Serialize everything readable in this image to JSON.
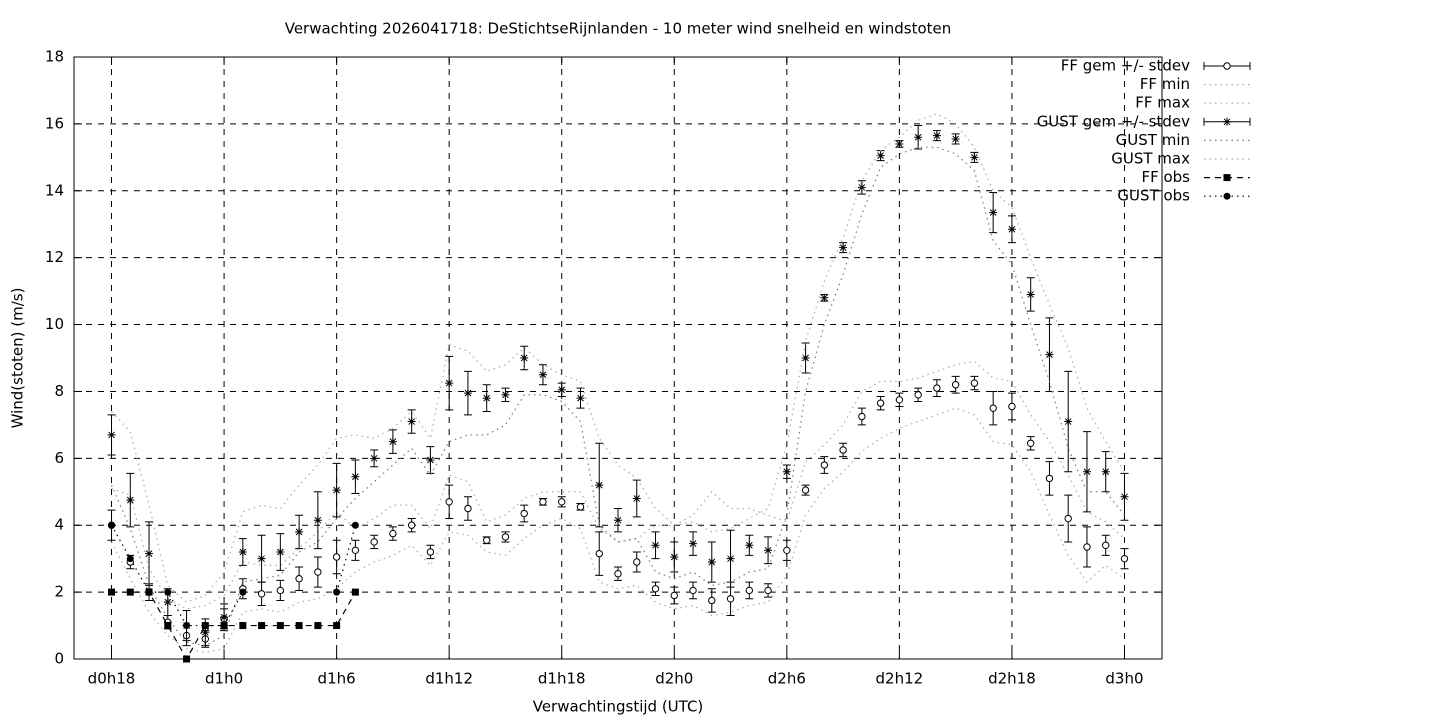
{
  "chart_data": {
    "type": "line",
    "title": "Verwachting 2026041718: DeStichtseRijnlanden - 10 meter wind snelheid en windstoten",
    "xlabel": "Verwachtingstijd (UTC)",
    "ylabel": "Wind(stoten) (m/s)",
    "xlim": [
      16,
      74
    ],
    "ylim": [
      0,
      18
    ],
    "xticks": [
      {
        "value": 18,
        "label": "d0h18"
      },
      {
        "value": 24,
        "label": "d1h0"
      },
      {
        "value": 30,
        "label": "d1h6"
      },
      {
        "value": 36,
        "label": "d1h12"
      },
      {
        "value": 42,
        "label": "d1h18"
      },
      {
        "value": 48,
        "label": "d2h0"
      },
      {
        "value": 54,
        "label": "d2h6"
      },
      {
        "value": 60,
        "label": "d2h12"
      },
      {
        "value": 66,
        "label": "d2h18"
      },
      {
        "value": 72,
        "label": "d3h0"
      }
    ],
    "yticks": [
      0,
      2,
      4,
      6,
      8,
      10,
      12,
      14,
      16,
      18
    ],
    "grid": true,
    "legend": "right",
    "x": [
      18,
      19,
      20,
      21,
      22,
      23,
      24,
      25,
      26,
      27,
      28,
      29,
      30,
      31,
      32,
      33,
      34,
      35,
      36,
      37,
      38,
      39,
      40,
      41,
      42,
      43,
      44,
      45,
      46,
      47,
      48,
      49,
      50,
      51,
      52,
      53,
      54,
      55,
      56,
      57,
      58,
      59,
      60,
      61,
      62,
      63,
      64,
      65,
      66,
      67,
      68,
      69,
      70,
      71,
      72
    ],
    "series": [
      {
        "name": "FF gem +/- stdev",
        "color": "#000000",
        "style": "errorbar",
        "marker": "circle",
        "values": [
          4.0,
          2.9,
          2.0,
          1.1,
          0.7,
          0.6,
          1.2,
          2.1,
          1.95,
          2.05,
          2.4,
          2.6,
          3.05,
          3.25,
          3.5,
          3.75,
          4.0,
          3.2,
          4.7,
          4.5,
          3.55,
          3.65,
          4.35,
          4.7,
          4.7,
          4.55,
          3.15,
          2.55,
          2.9,
          2.1,
          1.9,
          2.05,
          1.75,
          1.8,
          2.05,
          2.05,
          3.25,
          5.05,
          5.8,
          6.25,
          7.25,
          7.65,
          7.75,
          7.9,
          8.1,
          8.2,
          8.25,
          7.5,
          7.55,
          6.45,
          5.4,
          4.2,
          3.35,
          3.4,
          3.0
        ],
        "errors": [
          0.45,
          0.2,
          0.25,
          0.2,
          0.3,
          0.25,
          0.3,
          0.3,
          0.35,
          0.3,
          0.35,
          0.45,
          0.5,
          0.3,
          0.2,
          0.2,
          0.2,
          0.2,
          0.5,
          0.35,
          0.1,
          0.15,
          0.25,
          0.1,
          0.15,
          0.1,
          0.65,
          0.2,
          0.3,
          0.2,
          0.25,
          0.25,
          0.35,
          0.5,
          0.25,
          0.2,
          0.3,
          0.15,
          0.25,
          0.2,
          0.25,
          0.2,
          0.2,
          0.2,
          0.25,
          0.25,
          0.2,
          0.5,
          0.4,
          0.2,
          0.5,
          0.7,
          0.6,
          0.3,
          0.3
        ]
      },
      {
        "name": "FF min",
        "color": "#aaaaaa",
        "style": "dotted",
        "values": [
          3.5,
          2.4,
          1.4,
          0.7,
          0.3,
          0.2,
          0.3,
          1.4,
          1.5,
          1.4,
          1.7,
          1.8,
          2.1,
          2.6,
          2.9,
          3.1,
          3.4,
          2.8,
          3.8,
          3.7,
          3.2,
          3.1,
          3.6,
          4.0,
          4.2,
          3.9,
          2.3,
          2.1,
          2.2,
          1.7,
          1.5,
          1.6,
          1.3,
          1.4,
          1.6,
          1.7,
          2.5,
          4.3,
          5.1,
          5.6,
          6.2,
          6.6,
          6.9,
          7.1,
          7.3,
          7.5,
          7.3,
          6.5,
          6.4,
          5.6,
          4.3,
          3.1,
          2.3,
          2.8,
          2.4
        ]
      },
      {
        "name": "FF max",
        "color": "#aaaaaa",
        "style": "dotted",
        "values": [
          5.1,
          4.9,
          2.7,
          1.8,
          1.5,
          1.6,
          1.9,
          2.9,
          2.8,
          2.8,
          3.3,
          3.8,
          4.4,
          3.9,
          4.2,
          4.6,
          4.6,
          3.9,
          5.5,
          5.3,
          4.1,
          4.3,
          4.8,
          5.0,
          5.0,
          5.0,
          3.9,
          3.5,
          3.6,
          4.0,
          4.0,
          4.3,
          5.0,
          4.5,
          4.5,
          4.3,
          4.1,
          5.9,
          6.4,
          7.0,
          8.0,
          8.3,
          8.3,
          8.4,
          8.6,
          8.8,
          8.9,
          8.4,
          8.3,
          7.3,
          6.5,
          5.5,
          4.4,
          4.1,
          3.6
        ]
      },
      {
        "name": "GUST gem +/- stdev",
        "color": "#000000",
        "style": "errorbar",
        "marker": "star",
        "values": [
          6.7,
          4.75,
          3.15,
          1.7,
          1.0,
          0.8,
          1.25,
          3.2,
          3.0,
          3.2,
          3.8,
          4.15,
          5.05,
          5.45,
          6.0,
          6.5,
          7.1,
          5.95,
          8.25,
          7.95,
          7.8,
          7.9,
          9.0,
          8.5,
          8.05,
          7.8,
          5.2,
          4.15,
          4.8,
          3.4,
          3.05,
          3.45,
          2.9,
          3.0,
          3.4,
          3.25,
          5.6,
          9.0,
          10.8,
          12.3,
          14.1,
          15.05,
          15.4,
          15.6,
          15.65,
          15.55,
          15.0,
          13.35,
          12.85,
          10.9,
          9.1,
          7.1,
          5.6,
          5.6,
          4.85
        ],
        "errors": [
          0.6,
          0.8,
          0.95,
          0.4,
          0.45,
          0.4,
          0.4,
          0.4,
          0.7,
          0.55,
          0.5,
          0.85,
          0.8,
          0.5,
          0.25,
          0.35,
          0.35,
          0.4,
          0.8,
          0.65,
          0.4,
          0.2,
          0.35,
          0.3,
          0.2,
          0.3,
          1.25,
          0.35,
          0.55,
          0.4,
          0.45,
          0.35,
          0.6,
          0.85,
          0.3,
          0.4,
          0.2,
          0.45,
          0.1,
          0.15,
          0.2,
          0.15,
          0.1,
          0.35,
          0.15,
          0.15,
          0.15,
          0.6,
          0.4,
          0.5,
          1.1,
          1.5,
          1.2,
          0.6,
          0.7
        ]
      },
      {
        "name": "GUST min",
        "color": "#777777",
        "style": "dotted",
        "values": [
          5.2,
          3.9,
          2.2,
          1.2,
          0.5,
          0.4,
          0.7,
          2.3,
          2.4,
          2.5,
          3.2,
          3.5,
          4.2,
          4.8,
          5.3,
          5.8,
          6.3,
          5.5,
          6.5,
          6.7,
          6.7,
          7.0,
          7.9,
          7.9,
          7.7,
          7.1,
          4.0,
          3.5,
          3.6,
          2.6,
          2.4,
          2.6,
          2.2,
          2.3,
          2.6,
          2.7,
          4.3,
          8.0,
          10.0,
          11.5,
          13.3,
          14.7,
          15.1,
          15.3,
          15.3,
          15.1,
          14.6,
          12.5,
          11.8,
          10.0,
          8.3,
          6.3,
          5.0,
          5.0,
          4.3
        ]
      },
      {
        "name": "GUST max",
        "color": "#aaaaaa",
        "style": "dotted",
        "values": [
          7.4,
          6.8,
          4.6,
          2.2,
          1.7,
          1.9,
          2.6,
          4.4,
          4.6,
          4.5,
          5.2,
          5.8,
          6.6,
          6.7,
          6.6,
          6.9,
          7.4,
          6.6,
          9.4,
          9.2,
          8.6,
          8.8,
          9.3,
          8.8,
          8.5,
          8.3,
          6.6,
          5.8,
          5.4,
          4.5,
          4.0,
          4.1,
          3.8,
          3.9,
          4.2,
          4.5,
          6.4,
          9.5,
          11.3,
          12.6,
          14.3,
          15.2,
          15.6,
          16.1,
          16.3,
          16.0,
          15.3,
          14.0,
          13.5,
          12.0,
          10.6,
          9.3,
          7.5,
          6.5,
          5.6
        ]
      },
      {
        "name": "FF obs",
        "color": "#000000",
        "style": "dashed",
        "marker": "square",
        "values": [
          2,
          2,
          2,
          1,
          0,
          1,
          1,
          1,
          1,
          1,
          1,
          1,
          1,
          2,
          null,
          null,
          null,
          null,
          null,
          null,
          null,
          null,
          null,
          null,
          null,
          null,
          null,
          null,
          null,
          null,
          null,
          null,
          null,
          null,
          null,
          null,
          null,
          null,
          null,
          null,
          null,
          null,
          null,
          null,
          null,
          null,
          null,
          null,
          null,
          null,
          null,
          null,
          null,
          null,
          null
        ]
      },
      {
        "name": "GUST obs",
        "color": "#000000",
        "style": "dotted",
        "marker": "dot",
        "values": [
          4,
          3,
          2,
          2,
          1,
          1,
          1,
          2,
          null,
          null,
          null,
          null,
          2,
          4,
          null,
          null,
          null,
          null,
          null,
          null,
          null,
          null,
          null,
          null,
          null,
          null,
          null,
          null,
          null,
          null,
          null,
          null,
          null,
          null,
          null,
          null,
          null,
          null,
          null,
          null,
          null,
          null,
          null,
          null,
          null,
          null,
          null,
          null,
          null,
          null,
          null,
          null,
          null,
          null,
          null
        ]
      }
    ]
  }
}
